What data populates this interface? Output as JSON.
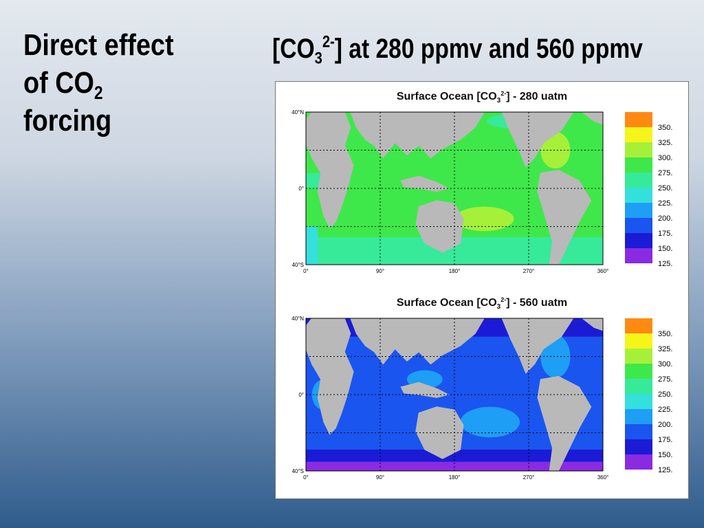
{
  "left_title": {
    "line1": "Direct effect",
    "line2_pre": "of  CO",
    "line2_sub": "2",
    "line3": "forcing"
  },
  "right_title": {
    "pre": "[CO",
    "sub": "3",
    "sup": "2-",
    "post": "] at 280 ppmv and 560 ppmv"
  },
  "colors": {
    "land": "#b9b9b9",
    "scale": [
      "#8a2be2",
      "#1b1bd6",
      "#1a55f0",
      "#1e9ef5",
      "#33e0dc",
      "#36ea9a",
      "#3ee84a",
      "#a6f03a",
      "#f5f51a",
      "#ff8a12"
    ]
  },
  "panels": [
    {
      "title_pre": "Surface Ocean [CO",
      "title_sub": "3",
      "title_sup": "2-",
      "title_post": "]  - 280 uatm",
      "ocean_level": "green",
      "y_ticks": [
        "40°N",
        "0°",
        "40°S"
      ],
      "x_ticks": [
        "0°",
        "90°",
        "180°",
        "270°",
        "360°"
      ],
      "legend": [
        "350.",
        "325.",
        "300.",
        "275.",
        "250.",
        "225.",
        "200.",
        "175.",
        "150.",
        "125."
      ]
    },
    {
      "title_pre": "Surface Ocean [CO",
      "title_sub": "3",
      "title_sup": "2-",
      "title_post": "]  - 560 uatm",
      "ocean_level": "blue",
      "y_ticks": [
        "40°N",
        "0°",
        "40°S"
      ],
      "x_ticks": [
        "0°",
        "90°",
        "180°",
        "270°",
        "360°"
      ],
      "legend": [
        "350.",
        "325.",
        "300.",
        "275.",
        "250.",
        "225.",
        "200.",
        "175.",
        "150.",
        "125."
      ]
    }
  ]
}
